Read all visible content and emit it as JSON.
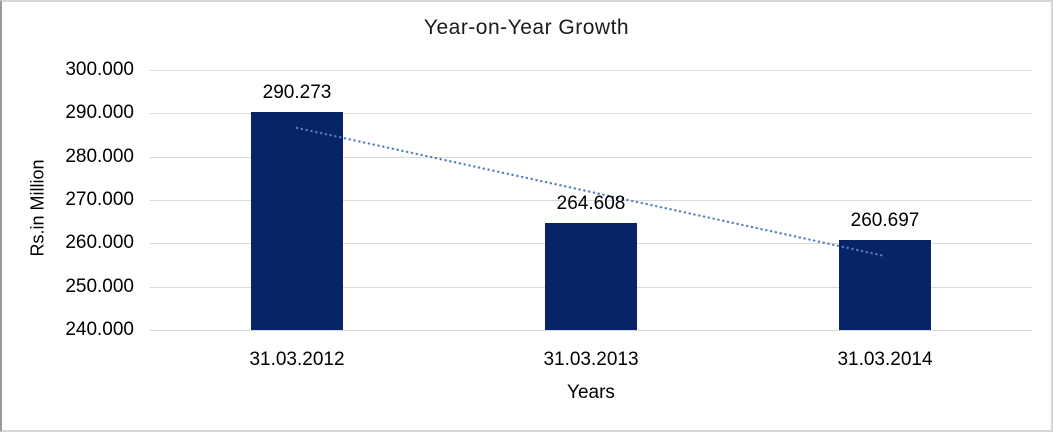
{
  "chart_data": {
    "type": "bar",
    "title": "Year-on-Year Growth",
    "categories": [
      "31.03.2012",
      "31.03.2013",
      "31.03.2014"
    ],
    "values": [
      290.273,
      264.608,
      260.697
    ],
    "data_labels": [
      "290.273",
      "264.608",
      "260.697"
    ],
    "xlabel": "Years",
    "ylabel": "Rs.in Million",
    "ylim": [
      240,
      300
    ],
    "ytick_step": 10,
    "ytick_labels": [
      "300.000",
      "290.000",
      "280.000",
      "270.000",
      "260.000",
      "250.000",
      "240.000"
    ],
    "grid": true,
    "legend": "none",
    "bar_color": "#072566",
    "trendline": {
      "type": "linear",
      "style": "dotted",
      "color": "#4F81BD"
    }
  }
}
